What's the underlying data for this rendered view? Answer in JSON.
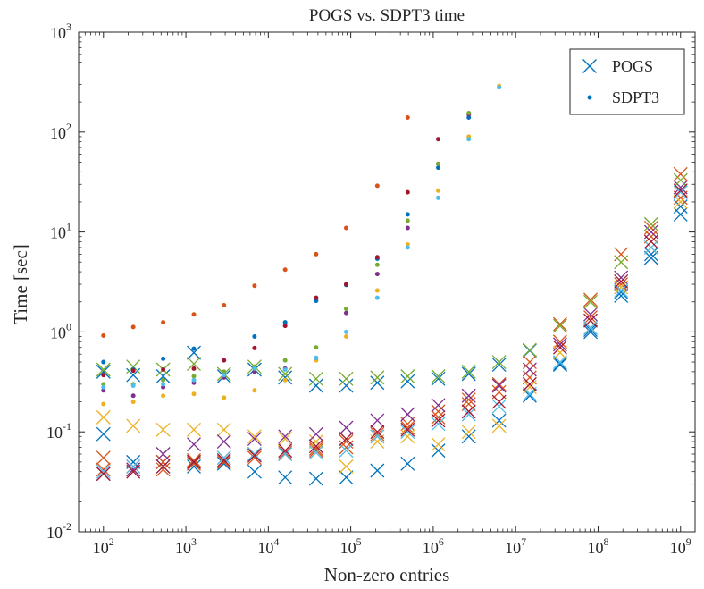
{
  "chart_data": {
    "type": "scatter",
    "title": "POGS vs. SDPT3 time",
    "xlabel": "Non-zero entries",
    "ylabel": "Time [sec]",
    "xscale": "log",
    "yscale": "log",
    "xlim": [
      50,
      1500000000
    ],
    "ylim": [
      0.01,
      1000
    ],
    "grid": false,
    "legend_position": "top-right",
    "x_ticks": [
      {
        "value": 100,
        "base": "10",
        "exp": "2"
      },
      {
        "value": 1000,
        "base": "10",
        "exp": "3"
      },
      {
        "value": 10000,
        "base": "10",
        "exp": "4"
      },
      {
        "value": 100000,
        "base": "10",
        "exp": "5"
      },
      {
        "value": 1000000,
        "base": "10",
        "exp": "6"
      },
      {
        "value": 10000000,
        "base": "10",
        "exp": "7"
      },
      {
        "value": 100000000,
        "base": "10",
        "exp": "8"
      },
      {
        "value": 1000000000,
        "base": "10",
        "exp": "9"
      }
    ],
    "y_ticks": [
      {
        "value": 0.01,
        "base": "10",
        "exp": "-2"
      },
      {
        "value": 0.1,
        "base": "10",
        "exp": "-1"
      },
      {
        "value": 1,
        "base": "10",
        "exp": "0"
      },
      {
        "value": 10,
        "base": "10",
        "exp": "1"
      },
      {
        "value": 100,
        "base": "10",
        "exp": "2"
      },
      {
        "value": 1000,
        "base": "10",
        "exp": "3"
      }
    ],
    "legend": [
      {
        "label": "POGS",
        "marker": "x",
        "color": "#0072BD"
      },
      {
        "label": "SDPT3",
        "marker": "dot",
        "color": "#0072BD"
      }
    ],
    "x": [
      100,
      230,
      530,
      1250,
      2900,
      6800,
      16000,
      38000,
      88000,
      210000,
      490000,
      1150000,
      2700000,
      6300000,
      14800000,
      34600000,
      81000000,
      190000000,
      440000000,
      1000000000
    ],
    "series": [
      {
        "marker": "x",
        "color": "#0072BD",
        "values": [
          0.095,
          0.05,
          0.05,
          0.045,
          0.048,
          0.04,
          0.035,
          0.034,
          0.035,
          0.041,
          0.048,
          0.065,
          0.09,
          0.13,
          0.23,
          0.47,
          1.0,
          2.3,
          5.5,
          15.0
        ]
      },
      {
        "marker": "x",
        "color": "#0072BD",
        "values": [
          0.4,
          0.37,
          0.36,
          0.62,
          0.36,
          0.42,
          0.35,
          0.29,
          0.29,
          0.31,
          0.32,
          0.34,
          0.38,
          0.47,
          0.65,
          0.48,
          1.05,
          2.5,
          6.0,
          18.0
        ]
      },
      {
        "marker": "x",
        "color": "#D95319",
        "values": [
          0.055,
          0.045,
          0.05,
          0.052,
          0.055,
          0.06,
          0.062,
          0.065,
          0.07,
          0.09,
          0.11,
          0.14,
          0.19,
          0.25,
          0.35,
          0.8,
          1.4,
          3.0,
          9.0,
          22.0
        ]
      },
      {
        "marker": "x",
        "color": "#D95319",
        "values": [
          0.042,
          0.042,
          0.042,
          0.048,
          0.05,
          0.055,
          0.06,
          0.068,
          0.08,
          0.095,
          0.12,
          0.16,
          0.21,
          0.3,
          0.5,
          1.2,
          2.1,
          6.0,
          11.0,
          38.0
        ]
      },
      {
        "marker": "x",
        "color": "#EDB120",
        "values": [
          0.14,
          0.115,
          0.105,
          0.105,
          0.105,
          0.09,
          0.085,
          0.08,
          0.045,
          0.08,
          0.09,
          0.075,
          0.1,
          0.115,
          0.28,
          0.62,
          1.1,
          2.8,
          7.0,
          20.0
        ]
      },
      {
        "marker": "x",
        "color": "#7E2F8E",
        "values": [
          0.038,
          0.042,
          0.06,
          0.075,
          0.08,
          0.085,
          0.09,
          0.095,
          0.11,
          0.13,
          0.15,
          0.185,
          0.23,
          0.29,
          0.42,
          0.75,
          1.5,
          3.5,
          10.0,
          28.0
        ]
      },
      {
        "marker": "x",
        "color": "#77AC30",
        "values": [
          0.42,
          0.45,
          0.42,
          0.48,
          0.38,
          0.45,
          0.38,
          0.34,
          0.34,
          0.35,
          0.36,
          0.36,
          0.4,
          0.5,
          0.66,
          1.15,
          2.0,
          5.0,
          12.0,
          33.0
        ]
      },
      {
        "marker": "x",
        "color": "#4DBEEE",
        "values": [
          0.04,
          0.045,
          0.045,
          0.05,
          0.055,
          0.06,
          0.06,
          0.062,
          0.065,
          0.09,
          0.1,
          0.12,
          0.15,
          0.18,
          0.24,
          0.5,
          1.1,
          2.6,
          7.0,
          25.0
        ]
      },
      {
        "marker": "x",
        "color": "#A2142F",
        "values": [
          0.038,
          0.04,
          0.045,
          0.05,
          0.052,
          0.058,
          0.065,
          0.072,
          0.085,
          0.1,
          0.105,
          0.13,
          0.16,
          0.2,
          0.3,
          0.7,
          1.3,
          3.2,
          8.0,
          26.0
        ]
      },
      {
        "marker": "dot",
        "color": "#0072BD",
        "values": [
          0.5,
          0.42,
          0.54,
          0.68,
          0.38,
          0.9,
          1.25,
          2.05,
          2.95,
          5.4,
          15.0,
          44.0,
          140.0
        ]
      },
      {
        "marker": "dot",
        "color": "#D95319",
        "values": [
          0.92,
          1.12,
          1.25,
          1.5,
          1.85,
          2.9,
          4.2,
          6.0,
          11.0,
          29.0,
          140.0
        ]
      },
      {
        "marker": "dot",
        "color": "#EDB120",
        "values": [
          0.19,
          0.2,
          0.23,
          0.24,
          0.22,
          0.26,
          0.33,
          0.52,
          0.9,
          2.6,
          7.5,
          26.0,
          90.0,
          290.0
        ]
      },
      {
        "marker": "dot",
        "color": "#7E2F8E",
        "values": [
          0.26,
          0.23,
          0.28,
          0.31,
          0.35,
          0.4,
          0.43,
          0.55,
          1.55,
          3.8,
          11.0,
          48.0,
          150.0
        ]
      },
      {
        "marker": "dot",
        "color": "#77AC30",
        "values": [
          0.3,
          0.3,
          0.33,
          0.36,
          0.4,
          0.45,
          0.52,
          0.7,
          1.7,
          4.7,
          13.0,
          48.0,
          155.0
        ]
      },
      {
        "marker": "dot",
        "color": "#4DBEEE",
        "values": [
          0.28,
          0.29,
          0.3,
          0.33,
          0.37,
          0.43,
          0.42,
          0.55,
          1.0,
          2.2,
          7.0,
          22.0,
          85.0,
          280.0
        ]
      },
      {
        "marker": "dot",
        "color": "#A2142F",
        "values": [
          0.37,
          0.41,
          0.42,
          0.43,
          0.52,
          0.69,
          1.15,
          2.2,
          3.0,
          5.6,
          25.0,
          85.0
        ]
      }
    ]
  }
}
